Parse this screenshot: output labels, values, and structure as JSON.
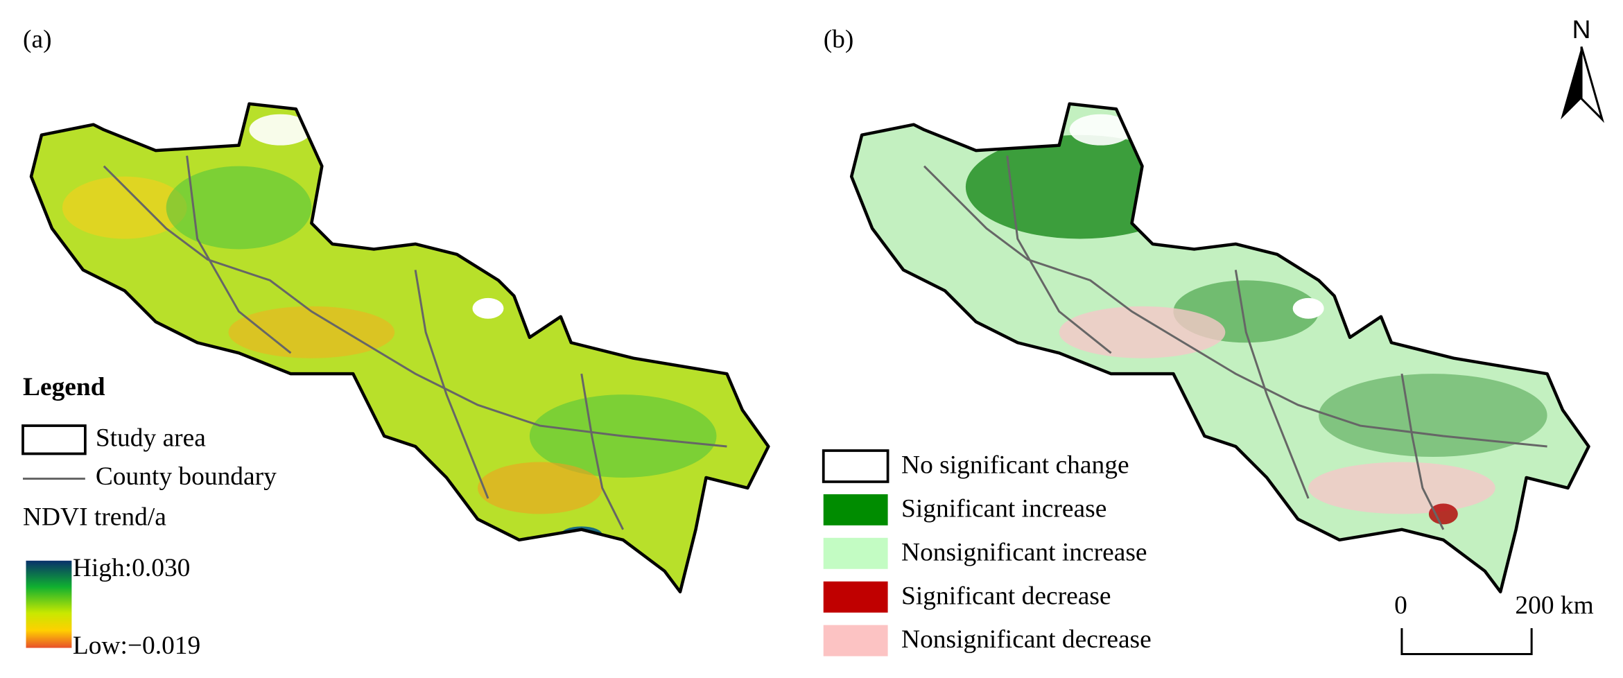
{
  "panels": [
    {
      "label": "(a)"
    },
    {
      "label": "(b)"
    }
  ],
  "legend_a": {
    "title": "Legend",
    "study_area": "Study area",
    "county_boundary": "County boundary",
    "ramp_title": "NDVI trend/a",
    "high": "High:0.030",
    "low": "Low:−0.019"
  },
  "legend_b": {
    "items": [
      {
        "label": "No significant change",
        "color": "#ffffff"
      },
      {
        "label": "Significant increase",
        "color": "#008c00"
      },
      {
        "label": "Nonsignificant increase",
        "color": "#c3fcc3"
      },
      {
        "label": "Significant decrease",
        "color": "#c00000"
      },
      {
        "label": "Nonsignificant decrease",
        "color": "#fcc3c3"
      }
    ]
  },
  "north": "N",
  "scale_bar": {
    "start": "0",
    "end": "200 km"
  }
}
